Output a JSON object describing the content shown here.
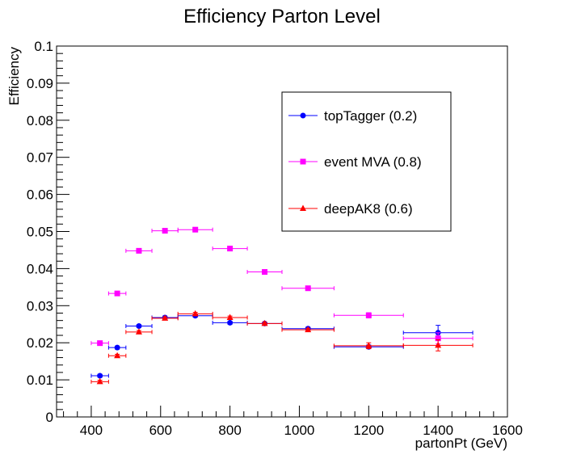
{
  "chart_data": {
    "type": "scatter",
    "title": "Efficiency Parton Level",
    "xlabel": "partonPt (GeV)",
    "ylabel": "Efficiency",
    "xlim": [
      300,
      1600
    ],
    "ylim": [
      0,
      0.1
    ],
    "x_ticks": [
      400,
      600,
      800,
      1000,
      1200,
      1400,
      1600
    ],
    "y_ticks": [
      0,
      0.01,
      0.02,
      0.03,
      0.04,
      0.05,
      0.06,
      0.07,
      0.08,
      0.09,
      0.1
    ],
    "x_tick_labels": [
      "400",
      "600",
      "800",
      "1000",
      "1200",
      "1400",
      "1600"
    ],
    "y_tick_labels": [
      "0",
      "0.01",
      "0.02",
      "0.03",
      "0.04",
      "0.05",
      "0.06",
      "0.07",
      "0.08",
      "0.09",
      "0.1"
    ],
    "legend_position": "top-right",
    "grid": false,
    "series": [
      {
        "name": "topTagger (0.2)",
        "color": "#0000ff",
        "marker": "circle",
        "points": [
          {
            "x": 425,
            "xerr": 25,
            "y": 0.0111,
            "yerr": 0.0004
          },
          {
            "x": 475,
            "xerr": 25,
            "y": 0.0187,
            "yerr": 0.0004
          },
          {
            "x": 537.5,
            "xerr": 37.5,
            "y": 0.0245,
            "yerr": 0.0004
          },
          {
            "x": 612.5,
            "xerr": 37.5,
            "y": 0.0268,
            "yerr": 0.0004
          },
          {
            "x": 700,
            "xerr": 50,
            "y": 0.0273,
            "yerr": 0.0004
          },
          {
            "x": 800,
            "xerr": 50,
            "y": 0.0254,
            "yerr": 0.0004
          },
          {
            "x": 900,
            "xerr": 50,
            "y": 0.0252,
            "yerr": 0.0004
          },
          {
            "x": 1025,
            "xerr": 75,
            "y": 0.0238,
            "yerr": 0.0004
          },
          {
            "x": 1200,
            "xerr": 100,
            "y": 0.0189,
            "yerr": 0.0005
          },
          {
            "x": 1400,
            "xerr": 100,
            "y": 0.0227,
            "yerr": 0.002
          }
        ]
      },
      {
        "name": "event MVA (0.8)",
        "color": "#ff00ff",
        "marker": "square",
        "points": [
          {
            "x": 425,
            "xerr": 25,
            "y": 0.0199,
            "yerr": 0.0004
          },
          {
            "x": 475,
            "xerr": 25,
            "y": 0.0333,
            "yerr": 0.0004
          },
          {
            "x": 537.5,
            "xerr": 37.5,
            "y": 0.0448,
            "yerr": 0.0004
          },
          {
            "x": 612.5,
            "xerr": 37.5,
            "y": 0.0502,
            "yerr": 0.0004
          },
          {
            "x": 700,
            "xerr": 50,
            "y": 0.0505,
            "yerr": 0.0004
          },
          {
            "x": 800,
            "xerr": 50,
            "y": 0.0454,
            "yerr": 0.0004
          },
          {
            "x": 900,
            "xerr": 50,
            "y": 0.0391,
            "yerr": 0.0004
          },
          {
            "x": 1025,
            "xerr": 75,
            "y": 0.0347,
            "yerr": 0.0004
          },
          {
            "x": 1200,
            "xerr": 100,
            "y": 0.0274,
            "yerr": 0.0007
          },
          {
            "x": 1400,
            "xerr": 100,
            "y": 0.0212,
            "yerr": 0.0015
          }
        ]
      },
      {
        "name": "deepAK8 (0.6)",
        "color": "#ff0000",
        "marker": "triangle",
        "points": [
          {
            "x": 425,
            "xerr": 25,
            "y": 0.0095,
            "yerr": 0.0004
          },
          {
            "x": 475,
            "xerr": 25,
            "y": 0.0165,
            "yerr": 0.0004
          },
          {
            "x": 537.5,
            "xerr": 37.5,
            "y": 0.0229,
            "yerr": 0.0004
          },
          {
            "x": 612.5,
            "xerr": 37.5,
            "y": 0.0266,
            "yerr": 0.0004
          },
          {
            "x": 700,
            "xerr": 50,
            "y": 0.0278,
            "yerr": 0.0004
          },
          {
            "x": 800,
            "xerr": 50,
            "y": 0.0268,
            "yerr": 0.0004
          },
          {
            "x": 900,
            "xerr": 50,
            "y": 0.0252,
            "yerr": 0.0004
          },
          {
            "x": 1025,
            "xerr": 75,
            "y": 0.0235,
            "yerr": 0.0004
          },
          {
            "x": 1200,
            "xerr": 100,
            "y": 0.0192,
            "yerr": 0.0008
          },
          {
            "x": 1400,
            "xerr": 100,
            "y": 0.0193,
            "yerr": 0.0015
          }
        ]
      }
    ]
  }
}
